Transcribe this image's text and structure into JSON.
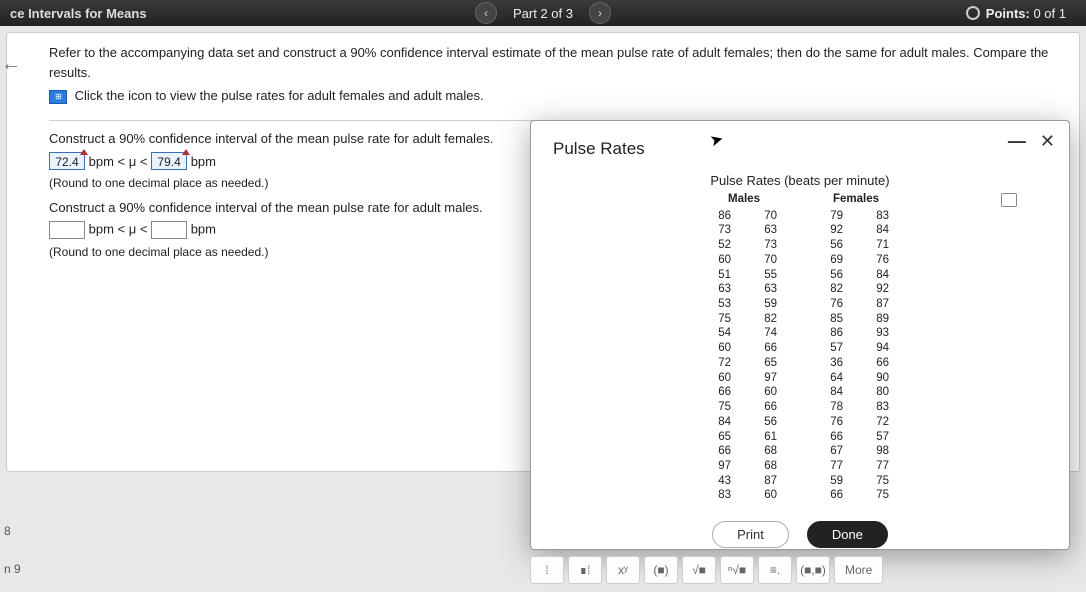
{
  "topbar": {
    "title_partial": "ce Intervals for Means",
    "part_label": "Part 2 of 3",
    "points_label": "Points:",
    "points_value": "0 of 1"
  },
  "instructions": {
    "line1": "Refer to the accompanying data set and construct a 90% confidence interval estimate of the mean pulse rate of adult females; then do the same for adult males. Compare the results.",
    "line2": "Click the icon to view the pulse rates for adult females and adult males."
  },
  "question": {
    "female_prompt": "Construct a 90% confidence interval of the mean pulse rate for adult females.",
    "female_lower": "72.4",
    "female_upper": "79.4",
    "unit_prefix": "bpm",
    "mu_lt": "< μ <",
    "unit_suffix": "bpm",
    "round_note": "(Round to one decimal place as needed.)",
    "male_prompt": "Construct a 90% confidence interval of the mean pulse rate for adult males."
  },
  "leftfoot": {
    "a": "8",
    "b": "n 9"
  },
  "modal": {
    "title": "Pulse Rates",
    "table_title": "Pulse Rates (beats per minute)",
    "males_header": "Males",
    "females_header": "Females",
    "print": "Print",
    "done": "Done"
  },
  "data": {
    "males_c1": [
      86,
      73,
      52,
      60,
      51,
      63,
      53,
      75,
      54,
      60,
      72,
      60,
      66,
      75,
      84,
      65,
      66,
      97,
      43,
      83
    ],
    "males_c2": [
      70,
      63,
      73,
      70,
      55,
      63,
      59,
      82,
      74,
      66,
      65,
      97,
      60,
      66,
      56,
      61,
      68,
      68,
      87,
      60
    ],
    "females_c1": [
      79,
      92,
      56,
      69,
      56,
      82,
      76,
      85,
      86,
      57,
      36,
      64,
      84,
      78,
      76,
      66,
      67,
      77,
      59,
      66
    ],
    "females_c2": [
      83,
      84,
      71,
      76,
      84,
      92,
      87,
      89,
      93,
      94,
      66,
      90,
      80,
      83,
      72,
      57,
      98,
      77,
      75,
      75
    ]
  },
  "toolbar": {
    "b1": "⁞",
    "b2": "∎⁞",
    "b3": "xʸ",
    "b4": "(■)",
    "b5": "√■",
    "b6": "ⁿ√■",
    "b7": "≡.",
    "b8": "(■,■)",
    "more": "More"
  }
}
